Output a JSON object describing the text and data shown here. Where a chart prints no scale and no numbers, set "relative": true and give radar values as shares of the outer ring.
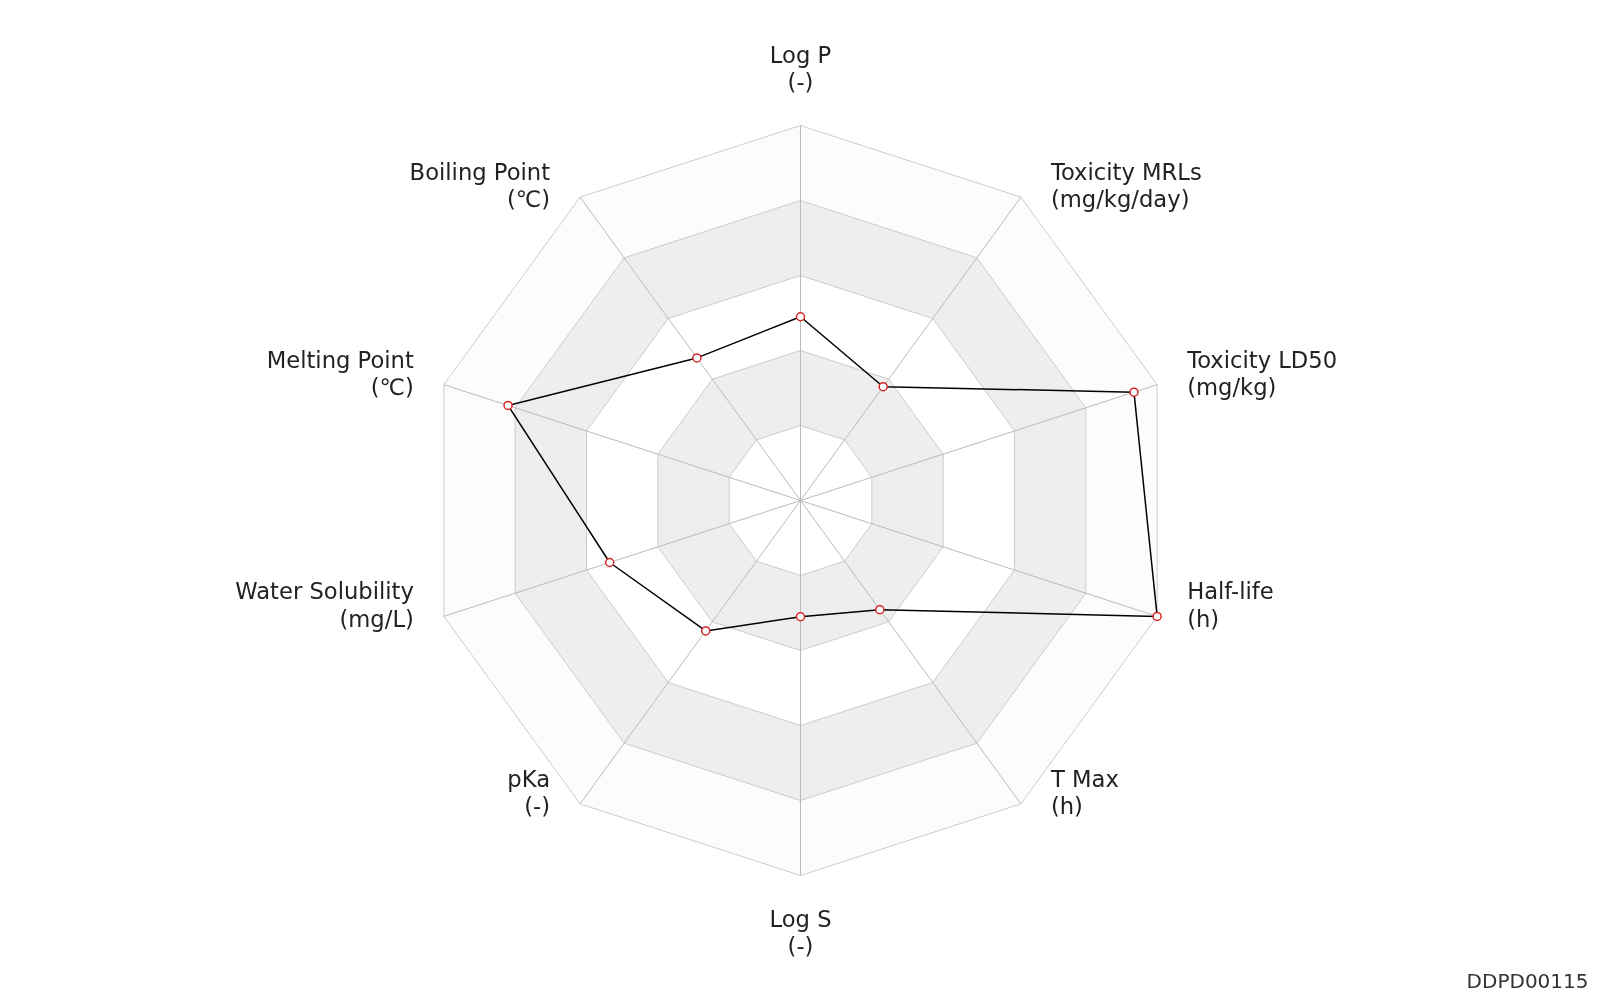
{
  "chart_data": {
    "type": "radar",
    "relative": true,
    "categories": [
      "Log P\n(-)",
      "Toxicity MRLs\n(mg/kg/day)",
      "Toxicity LD50\n(mg/kg)",
      "Half-life\n(h)",
      "T Max\n(h)",
      "Log S\n(-)",
      "pKa\n(-)",
      "Water Solubility\n(mg/L)",
      "Melting Point\n(℃)",
      "Boiling Point\n(℃)"
    ],
    "series": [
      {
        "color": "#000000",
        "values": [
          0.49,
          0.375,
          0.935,
          1.0,
          0.36,
          0.31,
          0.43,
          0.535,
          0.82,
          0.47
        ]
      }
    ],
    "marker": "circle",
    "grid": true,
    "annotations": [
      "DDPD00115"
    ]
  }
}
